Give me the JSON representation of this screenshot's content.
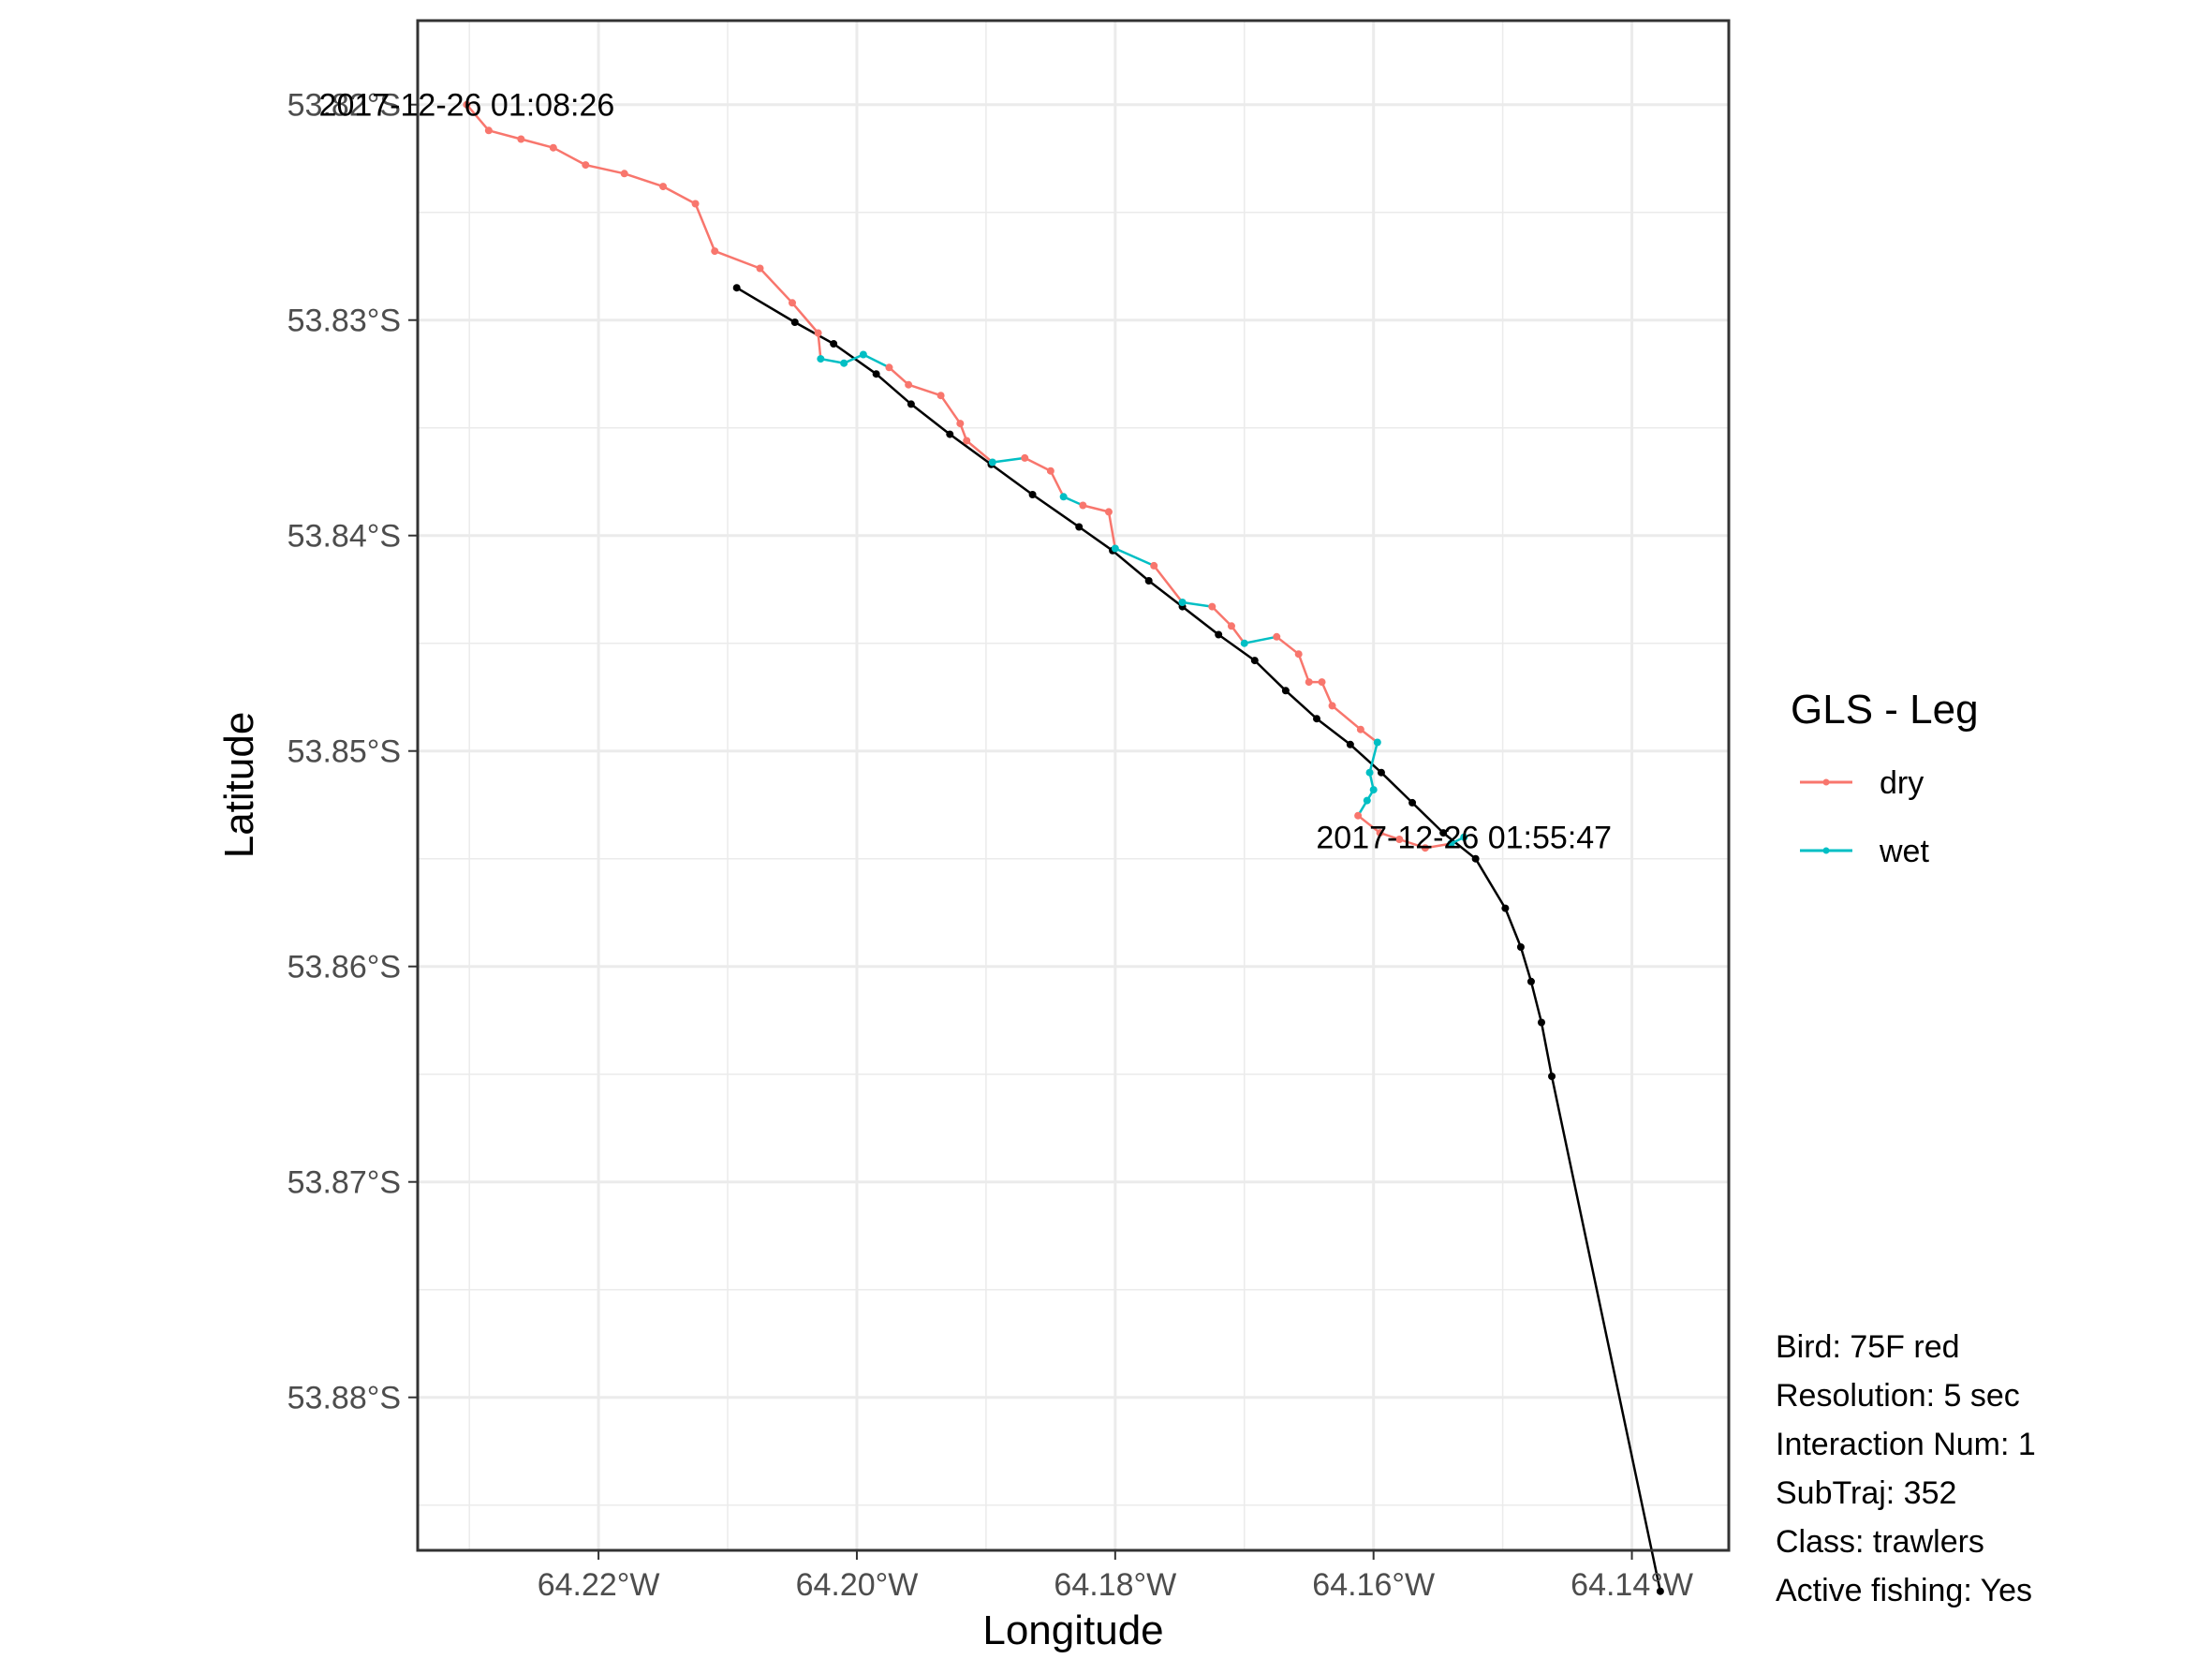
{
  "chart_data": {
    "type": "line",
    "title": "",
    "xlabel": "Longitude",
    "ylabel": "Latitude",
    "xlim": [
      -64.234,
      -64.1325
    ],
    "ylim": [
      -53.8871,
      -53.8161
    ],
    "x_ticks": [
      {
        "value": -64.22,
        "label": "64.22°W"
      },
      {
        "value": -64.2,
        "label": "64.20°W"
      },
      {
        "value": -64.18,
        "label": "64.18°W"
      },
      {
        "value": -64.16,
        "label": "64.16°W"
      },
      {
        "value": -64.14,
        "label": "64.14°W"
      }
    ],
    "y_ticks": [
      {
        "value": -53.82,
        "label": "53.82°S"
      },
      {
        "value": -53.83,
        "label": "53.83°S"
      },
      {
        "value": -53.84,
        "label": "53.84°S"
      },
      {
        "value": -53.85,
        "label": "53.85°S"
      },
      {
        "value": -53.86,
        "label": "53.86°S"
      },
      {
        "value": -53.87,
        "label": "53.87°S"
      },
      {
        "value": -53.88,
        "label": "53.88°S"
      }
    ],
    "grid": true,
    "legend": {
      "title": "GLS - Leg",
      "placement": "right",
      "items": [
        {
          "label": "dry",
          "color": "#F8766D"
        },
        {
          "label": "wet",
          "color": "#00BFC4"
        }
      ]
    },
    "series": [
      {
        "name": "vessel",
        "color": "#000000",
        "points": [
          [
            -64.2093,
            -53.8285
          ],
          [
            -64.2048,
            -53.8301
          ],
          [
            -64.2018,
            -53.8311
          ],
          [
            -64.1985,
            -53.8325
          ],
          [
            -64.1958,
            -53.8339
          ],
          [
            -64.1928,
            -53.8353
          ],
          [
            -64.1896,
            -53.8367
          ],
          [
            -64.1864,
            -53.8381
          ],
          [
            -64.1828,
            -53.8396
          ],
          [
            -64.1802,
            -53.8407
          ],
          [
            -64.1774,
            -53.8421
          ],
          [
            -64.1748,
            -53.8433
          ],
          [
            -64.172,
            -53.8446
          ],
          [
            -64.1692,
            -53.8458
          ],
          [
            -64.1668,
            -53.8472
          ],
          [
            -64.1644,
            -53.8485
          ],
          [
            -64.1618,
            -53.8497
          ],
          [
            -64.1594,
            -53.851
          ],
          [
            -64.157,
            -53.8524
          ],
          [
            -64.1546,
            -53.8538
          ],
          [
            -64.1521,
            -53.855
          ],
          [
            -64.1498,
            -53.8573
          ],
          [
            -64.1486,
            -53.8591
          ],
          [
            -64.1478,
            -53.8607
          ],
          [
            -64.147,
            -53.8626
          ],
          [
            -64.1462,
            -53.8651
          ],
          [
            -64.1378,
            -53.889
          ]
        ]
      },
      {
        "name": "bird",
        "points": [
          [
            -64.2302,
            -53.82,
            "dry"
          ],
          [
            -64.2285,
            -53.8212,
            "dry"
          ],
          [
            -64.226,
            -53.8216,
            "dry"
          ],
          [
            -64.2235,
            -53.822,
            "dry"
          ],
          [
            -64.221,
            -53.8228,
            "dry"
          ],
          [
            -64.218,
            -53.8232,
            "dry"
          ],
          [
            -64.215,
            -53.8238,
            "dry"
          ],
          [
            -64.2125,
            -53.8246,
            "dry"
          ],
          [
            -64.211,
            -53.8268,
            "dry"
          ],
          [
            -64.2075,
            -53.8276,
            "dry"
          ],
          [
            -64.205,
            -53.8292,
            "dry"
          ],
          [
            -64.203,
            -53.8306,
            "dry"
          ],
          [
            -64.2028,
            -53.8318,
            "wet"
          ],
          [
            -64.201,
            -53.832,
            "wet"
          ],
          [
            -64.1995,
            -53.8316,
            "wet"
          ],
          [
            -64.1975,
            -53.8322,
            "dry"
          ],
          [
            -64.196,
            -53.833,
            "dry"
          ],
          [
            -64.1935,
            -53.8335,
            "dry"
          ],
          [
            -64.192,
            -53.8348,
            "dry"
          ],
          [
            -64.1915,
            -53.8356,
            "dry"
          ],
          [
            -64.1895,
            -53.8366,
            "wet"
          ],
          [
            -64.187,
            -53.8364,
            "dry"
          ],
          [
            -64.185,
            -53.837,
            "dry"
          ],
          [
            -64.184,
            -53.8382,
            "wet"
          ],
          [
            -64.1825,
            -53.8386,
            "dry"
          ],
          [
            -64.1805,
            -53.8389,
            "dry"
          ],
          [
            -64.18,
            -53.8406,
            "wet"
          ],
          [
            -64.177,
            -53.8414,
            "dry"
          ],
          [
            -64.1748,
            -53.8431,
            "wet"
          ],
          [
            -64.1725,
            -53.8433,
            "dry"
          ],
          [
            -64.171,
            -53.8442,
            "dry"
          ],
          [
            -64.17,
            -53.845,
            "wet"
          ],
          [
            -64.1675,
            -53.8447,
            "dry"
          ],
          [
            -64.1658,
            -53.8455,
            "dry"
          ],
          [
            -64.165,
            -53.8468,
            "dry"
          ],
          [
            -64.164,
            -53.8468,
            "dry"
          ],
          [
            -64.1632,
            -53.8479,
            "dry"
          ],
          [
            -64.161,
            -53.849,
            "dry"
          ],
          [
            -64.1597,
            -53.8496,
            "wet"
          ],
          [
            -64.1603,
            -53.851,
            "wet"
          ],
          [
            -64.16,
            -53.8518,
            "wet"
          ],
          [
            -64.1605,
            -53.8523,
            "wet"
          ],
          [
            -64.1612,
            -53.853,
            "dry"
          ],
          [
            -64.1595,
            -53.8538,
            "dry"
          ],
          [
            -64.158,
            -53.8541,
            "dry"
          ],
          [
            -64.156,
            -53.8545,
            "dry"
          ],
          [
            -64.154,
            -53.8543,
            "wet"
          ],
          [
            -64.153,
            -53.854,
            "wet"
          ]
        ]
      }
    ],
    "annotations": [
      {
        "text": "2017-12-26 01:08:26",
        "x": -64.2302,
        "y": -53.82
      },
      {
        "text": "2017-12-26 01:55:47",
        "x": -64.153,
        "y": -53.854
      }
    ]
  },
  "info": {
    "bird": "Bird: 75F red",
    "resolution": "Resolution: 5 sec",
    "interaction": "Interaction Num: 1",
    "subtraj": "SubTraj: 352",
    "class": "Class: trawlers",
    "fishing": "Active fishing: Yes"
  }
}
